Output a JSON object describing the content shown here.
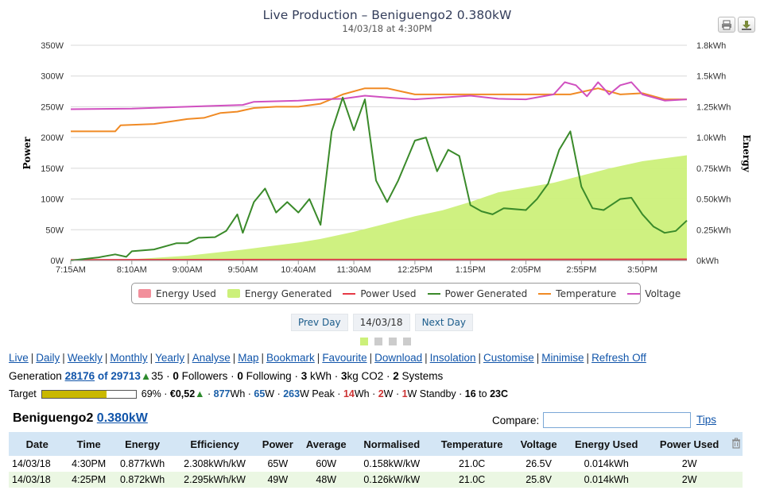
{
  "chart": {
    "title": "Live Production – Beniguengo2 0.380kW",
    "subtitle": "14/03/18 at 4:30PM",
    "y_left_label": "Power",
    "y_right_label": "Energy",
    "y_left_ticks": [
      "0W",
      "50W",
      "100W",
      "150W",
      "200W",
      "250W",
      "300W",
      "350W"
    ],
    "y_right_ticks": [
      "0kWh",
      "0.25kWh",
      "0.50kWh",
      "0.75kWh",
      "1.0kWh",
      "1.25kWh",
      "1.5kWh",
      "1.8kWh"
    ],
    "x_ticks": [
      "7:15AM",
      "8:10AM",
      "9:00AM",
      "9:50AM",
      "10:40AM",
      "11:30AM",
      "12:25PM",
      "1:15PM",
      "2:05PM",
      "2:55PM",
      "3:50PM"
    ],
    "print_icon": "print-icon",
    "download_icon": "download-icon"
  },
  "chart_data": {
    "type": "line",
    "x_start": "7:15AM",
    "x_end": "4:30PM",
    "ylim_left": [
      0,
      350
    ],
    "ylim_right": [
      0,
      1.8
    ],
    "series": [
      {
        "name": "Energy Used",
        "axis": "right",
        "color": "#f28f9b",
        "t": [
          "7:15AM",
          "4:30PM"
        ],
        "values": [
          0,
          0.014
        ]
      },
      {
        "name": "Energy Generated",
        "axis": "right",
        "color": "#ccf07a",
        "t": [
          "7:15AM",
          "8:10AM",
          "9:00AM",
          "9:50AM",
          "10:40AM",
          "11:00AM",
          "11:30AM",
          "12:00PM",
          "12:25PM",
          "12:50PM",
          "1:15PM",
          "1:40PM",
          "2:05PM",
          "2:30PM",
          "2:55PM",
          "3:20PM",
          "3:50PM",
          "4:30PM"
        ],
        "values": [
          0,
          0.01,
          0.04,
          0.09,
          0.15,
          0.18,
          0.24,
          0.31,
          0.37,
          0.42,
          0.49,
          0.57,
          0.61,
          0.65,
          0.71,
          0.77,
          0.83,
          0.88
        ]
      },
      {
        "name": "Power Used",
        "axis": "left",
        "color": "#e63946",
        "t": [
          "7:15AM",
          "4:30PM"
        ],
        "values": [
          1,
          2
        ]
      },
      {
        "name": "Power Generated",
        "axis": "left",
        "color": "#3a8a2a",
        "t": [
          "7:15AM",
          "7:40AM",
          "7:55AM",
          "8:05AM",
          "8:10AM",
          "8:30AM",
          "8:50AM",
          "9:00AM",
          "9:10AM",
          "9:25AM",
          "9:35AM",
          "9:45AM",
          "9:50AM",
          "10:00AM",
          "10:10AM",
          "10:20AM",
          "10:30AM",
          "10:40AM",
          "10:50AM",
          "11:00AM",
          "11:10AM",
          "11:20AM",
          "11:30AM",
          "11:40AM",
          "11:50AM",
          "12:00PM",
          "12:10PM",
          "12:25PM",
          "12:35PM",
          "12:45PM",
          "12:55PM",
          "1:05PM",
          "1:15PM",
          "1:25PM",
          "1:35PM",
          "1:45PM",
          "2:05PM",
          "2:15PM",
          "2:25PM",
          "2:35PM",
          "2:45PM",
          "2:55PM",
          "3:05PM",
          "3:15PM",
          "3:30PM",
          "3:40PM",
          "3:50PM",
          "4:00PM",
          "4:10PM",
          "4:20PM",
          "4:30PM"
        ],
        "values": [
          0,
          5,
          10,
          6,
          15,
          18,
          28,
          28,
          37,
          38,
          48,
          75,
          45,
          95,
          117,
          78,
          95,
          78,
          100,
          58,
          210,
          265,
          212,
          262,
          130,
          95,
          130,
          195,
          200,
          145,
          180,
          170,
          90,
          80,
          75,
          85,
          82,
          100,
          125,
          180,
          210,
          120,
          85,
          82,
          100,
          102,
          75,
          55,
          45,
          48,
          65
        ]
      },
      {
        "name": "Temperature",
        "axis": "left",
        "color": "#f08a24",
        "t": [
          "7:15AM",
          "7:55AM",
          "8:00AM",
          "8:30AM",
          "9:00AM",
          "9:15AM",
          "9:30AM",
          "9:45AM",
          "10:00AM",
          "10:20AM",
          "10:40AM",
          "11:00AM",
          "11:20AM",
          "11:40AM",
          "12:00PM",
          "12:25PM",
          "1:15PM",
          "2:05PM",
          "2:25PM",
          "2:45PM",
          "3:10PM",
          "3:30PM",
          "3:50PM",
          "4:10PM",
          "4:30PM"
        ],
        "values": [
          210,
          210,
          220,
          222,
          230,
          232,
          240,
          242,
          248,
          250,
          250,
          255,
          270,
          280,
          280,
          270,
          270,
          270,
          270,
          270,
          280,
          270,
          272,
          262,
          262
        ]
      },
      {
        "name": "Voltage",
        "axis": "left",
        "color": "#d050c0",
        "t": [
          "7:15AM",
          "8:10AM",
          "9:00AM",
          "9:50AM",
          "10:00AM",
          "10:40AM",
          "11:00AM",
          "11:20AM",
          "11:40AM",
          "12:00PM",
          "12:25PM",
          "1:15PM",
          "1:40PM",
          "2:05PM",
          "2:30PM",
          "2:40PM",
          "2:50PM",
          "3:00PM",
          "3:10PM",
          "3:20PM",
          "3:30PM",
          "3:40PM",
          "3:50PM",
          "4:10PM",
          "4:30PM"
        ],
        "values": [
          246,
          247,
          250,
          253,
          258,
          260,
          262,
          263,
          268,
          265,
          262,
          268,
          263,
          262,
          270,
          290,
          285,
          267,
          290,
          270,
          285,
          290,
          270,
          260,
          262
        ]
      }
    ]
  },
  "legend": {
    "items": [
      {
        "label": "Energy Used",
        "color": "#f28f9b",
        "kind": "area"
      },
      {
        "label": "Energy Generated",
        "color": "#ccf07a",
        "kind": "area"
      },
      {
        "label": "Power Used",
        "color": "#e63946",
        "kind": "line"
      },
      {
        "label": "Power Generated",
        "color": "#3a8a2a",
        "kind": "line"
      },
      {
        "label": "Temperature",
        "color": "#f08a24",
        "kind": "line"
      },
      {
        "label": "Voltage",
        "color": "#d050c0",
        "kind": "line"
      }
    ]
  },
  "day_nav": {
    "prev": "Prev Day",
    "date": "14/03/18",
    "next": "Next Day"
  },
  "nav_links": [
    "Live",
    "Daily",
    "Weekly",
    "Monthly",
    "Yearly",
    "Analyse",
    "Map",
    "Bookmark",
    "Favourite",
    "Download",
    "Insolation",
    "Customise",
    "Minimise",
    "Refresh Off"
  ],
  "generation": {
    "label": "Generation",
    "rank": "28176",
    "of_text": "of 29713",
    "change": "35",
    "followers_count": "0",
    "followers_label": "Followers",
    "following_count": "0",
    "following_label": "Following",
    "kwh_count": "3",
    "kwh_label": "kWh",
    "co2_count": "3",
    "co2_label": "kg CO2",
    "systems_count": "2",
    "systems_label": "Systems"
  },
  "target": {
    "label": "Target",
    "percent": 69,
    "percent_text": "69%",
    "money": "€0,52",
    "wh": "877",
    "wh_unit": "Wh",
    "w": "65",
    "w_unit": "W",
    "peak": "263",
    "peak_unit": "W Peak",
    "used_wh": "14",
    "used_wh_unit": "Wh",
    "used_w": "2",
    "used_w_unit": "W",
    "standby": "1",
    "standby_unit": "W Standby",
    "temp_low": "16",
    "temp_to": "to",
    "temp_high": "23C"
  },
  "system": {
    "name": "Beniguengo2",
    "size": "0.380kW"
  },
  "compare": {
    "label": "Compare:",
    "value": "",
    "tips": "Tips"
  },
  "table": {
    "columns": [
      "Date",
      "Time",
      "Energy",
      "Efficiency",
      "Power",
      "Average",
      "Normalised",
      "Temperature",
      "Voltage",
      "Energy Used",
      "Power Used"
    ],
    "rows": [
      [
        "14/03/18",
        "4:30PM",
        "0.877kWh",
        "2.308kWh/kW",
        "65W",
        "60W",
        "0.158kW/kW",
        "21.0C",
        "26.5V",
        "0.014kWh",
        "2W"
      ],
      [
        "14/03/18",
        "4:25PM",
        "0.872kWh",
        "2.295kWh/kW",
        "49W",
        "48W",
        "0.126kW/kW",
        "21.0C",
        "25.8V",
        "0.014kWh",
        "2W"
      ]
    ]
  }
}
